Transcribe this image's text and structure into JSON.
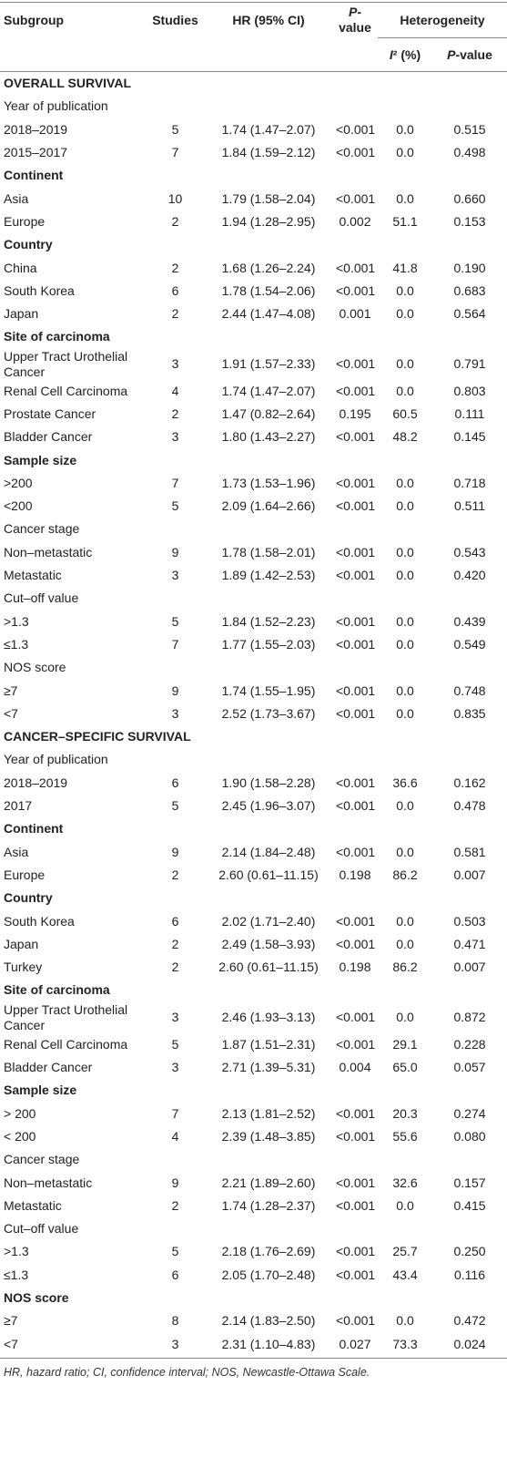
{
  "header": {
    "subgroup": "Subgroup",
    "studies": "Studies",
    "hr": "HR (95% CI)",
    "p_value": "P-value",
    "heterogeneity": "Heterogeneity",
    "i2": "I² (%)",
    "het_p_value": "P-value"
  },
  "rows": [
    {
      "label": "OVERALL SURVIVAL",
      "bold": true
    },
    {
      "label": "Year of publication",
      "bold": false
    },
    [
      "2018–2019",
      "5",
      "1.74 (1.47–2.07)",
      "<0.001",
      "0.0",
      "0.515"
    ],
    [
      "2015–2017",
      "7",
      "1.84 (1.59–2.12)",
      "<0.001",
      "0.0",
      "0.498"
    ],
    {
      "label": "Continent",
      "bold": true
    },
    [
      "Asia",
      "10",
      "1.79 (1.58–2.04)",
      "<0.001",
      "0.0",
      "0.660"
    ],
    [
      "Europe",
      "2",
      "1.94 (1.28–2.95)",
      "0.002",
      "51.1",
      "0.153"
    ],
    {
      "label": "Country",
      "bold": true
    },
    [
      "China",
      "2",
      "1.68 (1.26–2.24)",
      "<0.001",
      "41.8",
      "0.190"
    ],
    [
      "South Korea",
      "6",
      "1.78 (1.54–2.06)",
      "<0.001",
      "0.0",
      "0.683"
    ],
    [
      "Japan",
      "2",
      "2.44 (1.47–4.08)",
      "0.001",
      "0.0",
      "0.564"
    ],
    {
      "label": "Site of carcinoma",
      "bold": true
    },
    [
      "Upper Tract Urothelial Cancer",
      "3",
      "1.91 (1.57–2.33)",
      "<0.001",
      "0.0",
      "0.791"
    ],
    [
      "Renal Cell Carcinoma",
      "4",
      "1.74 (1.47–2.07)",
      "<0.001",
      "0.0",
      "0.803"
    ],
    [
      "Prostate Cancer",
      "2",
      "1.47 (0.82–2.64)",
      "0.195",
      "60.5",
      "0.111"
    ],
    [
      "Bladder Cancer",
      "3",
      "1.80 (1.43–2.27)",
      "<0.001",
      "48.2",
      "0.145"
    ],
    {
      "label": "Sample size",
      "bold": true
    },
    [
      ">200",
      "7",
      "1.73 (1.53–1.96)",
      "<0.001",
      "0.0",
      "0.718"
    ],
    [
      "<200",
      "5",
      "2.09 (1.64–2.66)",
      "<0.001",
      "0.0",
      "0.511"
    ],
    {
      "label": "Cancer stage",
      "bold": false
    },
    [
      "Non–metastatic",
      "9",
      "1.78 (1.58–2.01)",
      "<0.001",
      "0.0",
      "0.543"
    ],
    [
      "Metastatic",
      "3",
      "1.89 (1.42–2.53)",
      "<0.001",
      "0.0",
      "0.420"
    ],
    {
      "label": "Cut–off value",
      "bold": false
    },
    [
      ">1.3",
      "5",
      "1.84 (1.52–2.23)",
      "<0.001",
      "0.0",
      "0.439"
    ],
    [
      "≤1.3",
      "7",
      "1.77 (1.55–2.03)",
      "<0.001",
      "0.0",
      "0.549"
    ],
    {
      "label": "NOS score",
      "bold": false
    },
    [
      "≥7",
      "9",
      "1.74 (1.55–1.95)",
      "<0.001",
      "0.0",
      "0.748"
    ],
    [
      "<7",
      "3",
      "2.52 (1.73–3.67)",
      "<0.001",
      "0.0",
      "0.835"
    ],
    {
      "label": "CANCER–SPECIFIC SURVIVAL",
      "bold": true
    },
    {
      "label": "Year of publication",
      "bold": false
    },
    [
      "2018–2019",
      "6",
      "1.90 (1.58–2.28)",
      "<0.001",
      "36.6",
      "0.162"
    ],
    [
      "2017",
      "5",
      "2.45 (1.96–3.07)",
      "<0.001",
      "0.0",
      "0.478"
    ],
    {
      "label": "Continent",
      "bold": true
    },
    [
      "Asia",
      "9",
      "2.14 (1.84–2.48)",
      "<0.001",
      "0.0",
      "0.581"
    ],
    [
      "Europe",
      "2",
      "2.60 (0.61–11.15)",
      "0.198",
      "86.2",
      "0.007"
    ],
    {
      "label": "Country",
      "bold": true
    },
    [
      "South Korea",
      "6",
      "2.02 (1.71–2.40)",
      "<0.001",
      "0.0",
      "0.503"
    ],
    [
      "Japan",
      "2",
      "2.49 (1.58–3.93)",
      "<0.001",
      "0.0",
      "0.471"
    ],
    [
      "Turkey",
      "2",
      "2.60 (0.61–11.15)",
      "0.198",
      "86.2",
      "0.007"
    ],
    {
      "label": "Site of carcinoma",
      "bold": true
    },
    [
      "Upper Tract Urothelial Cancer",
      "3",
      "2.46 (1.93–3.13)",
      "<0.001",
      "0.0",
      "0.872"
    ],
    [
      "Renal Cell Carcinoma",
      "5",
      "1.87 (1.51–2.31)",
      "<0.001",
      "29.1",
      "0.228"
    ],
    [
      "Bladder Cancer",
      "3",
      "2.71 (1.39–5.31)",
      "0.004",
      "65.0",
      "0.057"
    ],
    {
      "label": "Sample size",
      "bold": true
    },
    [
      "> 200",
      "7",
      "2.13 (1.81–2.52)",
      "<0.001",
      "20.3",
      "0.274"
    ],
    [
      "< 200",
      "4",
      "2.39 (1.48–3.85)",
      "<0.001",
      "55.6",
      "0.080"
    ],
    {
      "label": "Cancer stage",
      "bold": false
    },
    [
      "Non–metastatic",
      "9",
      "2.21 (1.89–2.60)",
      "<0.001",
      "32.6",
      "0.157"
    ],
    [
      "Metastatic",
      "2",
      "1.74 (1.28–2.37)",
      "<0.001",
      "0.0",
      "0.415"
    ],
    {
      "label": "Cut–off value",
      "bold": false
    },
    [
      ">1.3",
      "5",
      "2.18 (1.76–2.69)",
      "<0.001",
      "25.7",
      "0.250"
    ],
    [
      "≤1.3",
      "6",
      "2.05 (1.70–2.48)",
      "<0.001",
      "43.4",
      "0.116"
    ],
    {
      "label": "NOS score",
      "bold": true
    },
    [
      "≥7",
      "8",
      "2.14 (1.83–2.50)",
      "<0.001",
      "0.0",
      "0.472"
    ],
    [
      "<7",
      "3",
      "2.31 (1.10–4.83)",
      "0.027",
      "73.3",
      "0.024"
    ]
  ],
  "footnote": "HR, hazard ratio; CI, confidence interval; NOS, Newcastle-Ottawa Scale."
}
